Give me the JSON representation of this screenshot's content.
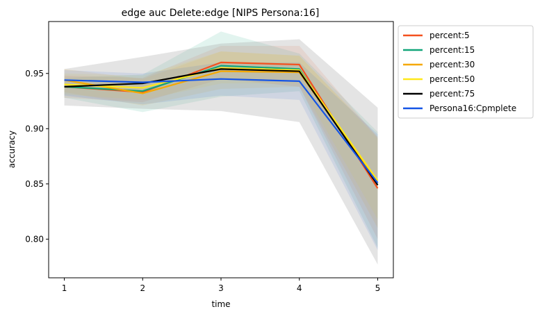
{
  "chart_data": {
    "type": "line",
    "title": "edge auc Delete:edge [NIPS Persona:16]",
    "xlabel": "time",
    "ylabel": "accuracy",
    "x": [
      1,
      2,
      3,
      4,
      5
    ],
    "xticks": [
      "1",
      "2",
      "3",
      "4",
      "5"
    ],
    "yticks": [
      "0.80",
      "0.85",
      "0.90",
      "0.95"
    ],
    "xlim": [
      0.8,
      5.2
    ],
    "ylim": [
      0.765,
      0.997
    ],
    "grid": false,
    "legend_position": "outside-right-top",
    "series": [
      {
        "name": "percent:5",
        "color": "#f4511e",
        "values": [
          0.938,
          0.933,
          0.96,
          0.958,
          0.846
        ],
        "band_low": [
          0.928,
          0.924,
          0.945,
          0.938,
          0.8
        ],
        "band_high": [
          0.948,
          0.946,
          0.975,
          0.975,
          0.892
        ]
      },
      {
        "name": "percent:15",
        "color": "#11a579",
        "values": [
          0.938,
          0.934,
          0.957,
          0.954,
          0.849
        ],
        "band_low": [
          0.928,
          0.915,
          0.929,
          0.934,
          0.792
        ],
        "band_high": [
          0.946,
          0.949,
          0.988,
          0.968,
          0.897
        ]
      },
      {
        "name": "percent:30",
        "color": "#f5a800",
        "values": [
          0.944,
          0.932,
          0.952,
          0.951,
          0.851
        ],
        "band_low": [
          0.933,
          0.921,
          0.936,
          0.938,
          0.81
        ],
        "band_high": [
          0.954,
          0.945,
          0.97,
          0.966,
          0.893
        ]
      },
      {
        "name": "percent:50",
        "color": "#ffe81a",
        "values": [
          0.94,
          0.937,
          0.955,
          0.953,
          0.853
        ],
        "band_low": [
          0.931,
          0.926,
          0.941,
          0.941,
          0.818
        ],
        "band_high": [
          0.95,
          0.948,
          0.97,
          0.966,
          0.891
        ]
      },
      {
        "name": "percent:75",
        "color": "#000000",
        "values": [
          0.938,
          0.941,
          0.954,
          0.952,
          0.849
        ],
        "band_low": [
          0.921,
          0.918,
          0.916,
          0.906,
          0.777
        ],
        "band_high": [
          0.954,
          0.965,
          0.977,
          0.981,
          0.919
        ]
      },
      {
        "name": "Persona16:Cpmplete",
        "color": "#1454e6",
        "values": [
          0.944,
          0.942,
          0.945,
          0.943,
          0.851
        ],
        "band_low": [
          0.93,
          0.922,
          0.93,
          0.926,
          0.79
        ],
        "band_high": [
          0.953,
          0.95,
          0.96,
          0.96,
          0.895
        ]
      }
    ]
  }
}
